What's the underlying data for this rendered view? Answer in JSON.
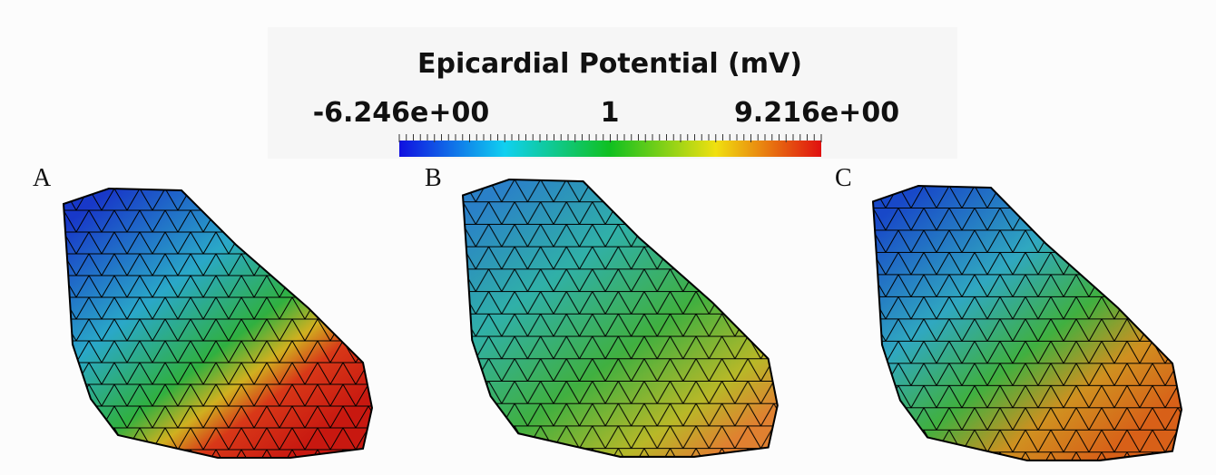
{
  "colorbar": {
    "title": "Epicardial Potential (mV)",
    "min_label": "-6.246e+00",
    "mid_label": "1",
    "max_label": "9.216e+00"
  },
  "panels": [
    {
      "label": "A"
    },
    {
      "label": "B"
    },
    {
      "label": "C"
    }
  ]
}
